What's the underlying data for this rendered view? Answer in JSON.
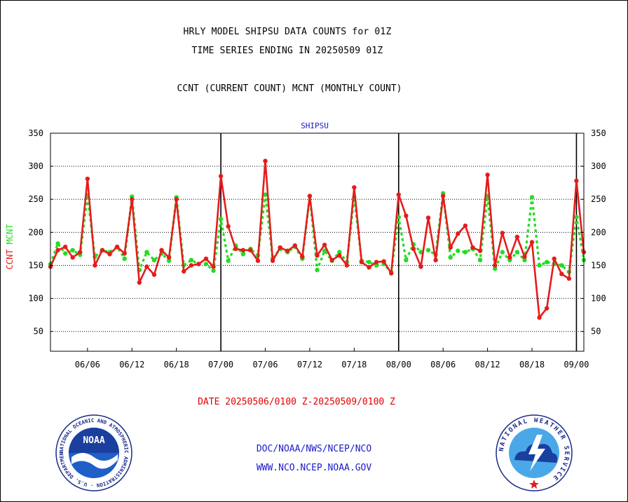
{
  "header": {
    "title_line1": "HRLY MODEL SHIPSU DATA COUNTS for 01Z",
    "title_line2": "TIME SERIES ENDING IN 20250509 01Z",
    "subtitle": "CCNT (CURRENT COUNT) MCNT (MONTHLY COUNT)"
  },
  "footer": {
    "date_range": "DATE 20250506/0100 Z-20250509/0100 Z",
    "org_path": "DOC/NOAA/NWS/NCEP/NCO",
    "website": "WWW.NCO.NCEP.NOAA.GOV"
  },
  "logos": {
    "noaa": "NOAA",
    "noaa_ring_text": "NATIONAL OCEANIC AND ATMOSPHERIC ADMINISTRATION · U.S. DEPARTMENT OF COMMERCE ·",
    "nws_ring_text": "NATIONAL WEATHER SERVICE"
  },
  "colors": {
    "ccnt": "#e51c1c",
    "mcnt": "#22dd22",
    "text": "#000000",
    "footer_text": "#1a1acc",
    "plot_title": "#1a1acc"
  },
  "chart_data": {
    "type": "line",
    "title": "SHIPSU",
    "ylabel_left": [
      "CCNT",
      "MCNT"
    ],
    "ylim": [
      20,
      350
    ],
    "yticks": [
      50,
      100,
      150,
      200,
      250,
      300,
      350
    ],
    "x_unit": "hours since 20250506/0100 Z",
    "xlim": [
      0,
      72
    ],
    "xticks": [
      {
        "x": 5,
        "label": "06/06"
      },
      {
        "x": 11,
        "label": "06/12"
      },
      {
        "x": 17,
        "label": "06/18"
      },
      {
        "x": 23,
        "label": "07/00"
      },
      {
        "x": 29,
        "label": "07/06"
      },
      {
        "x": 35,
        "label": "07/12"
      },
      {
        "x": 41,
        "label": "07/18"
      },
      {
        "x": 47,
        "label": "08/00"
      },
      {
        "x": 53,
        "label": "08/06"
      },
      {
        "x": 59,
        "label": "08/12"
      },
      {
        "x": 65,
        "label": "08/18"
      },
      {
        "x": 71,
        "label": "09/00"
      }
    ],
    "day_boundaries": [
      23,
      47,
      71
    ],
    "grid": "horizontal dotted",
    "series": [
      {
        "name": "CCNT",
        "style": "solid",
        "values": [
          148,
          173,
          178,
          162,
          170,
          281,
          150,
          173,
          167,
          178,
          168,
          250,
          124,
          148,
          136,
          173,
          162,
          250,
          141,
          150,
          152,
          160,
          148,
          285,
          209,
          175,
          173,
          173,
          157,
          308,
          157,
          177,
          172,
          180,
          163,
          255,
          165,
          181,
          158,
          165,
          150,
          268,
          155,
          147,
          155,
          156,
          138,
          257,
          225,
          175,
          148,
          222,
          158,
          255,
          177,
          198,
          210,
          177,
          172,
          287,
          150,
          199,
          162,
          193,
          163,
          185,
          71,
          85,
          160,
          137,
          130,
          278,
          170
        ],
        "markers": [
          0,
          1,
          2,
          3,
          4,
          5,
          6,
          7,
          8,
          9,
          10,
          11,
          12,
          13,
          14,
          15,
          16,
          17,
          18,
          19,
          20,
          21,
          22,
          23,
          24,
          25,
          26,
          27,
          28,
          29,
          30,
          31,
          32,
          33,
          34,
          35,
          36,
          37,
          38,
          39,
          40,
          41,
          42,
          43,
          44,
          45,
          46,
          47,
          48,
          49,
          50,
          51,
          52,
          53,
          54,
          55,
          56,
          57,
          58,
          59,
          60,
          61,
          62,
          63,
          64,
          65,
          66,
          67,
          68,
          69,
          70,
          71,
          72
        ]
      },
      {
        "name": "MCNT",
        "style": "dashed",
        "values": [
          152,
          183,
          168,
          173,
          166,
          256,
          163,
          173,
          170,
          178,
          160,
          254,
          143,
          170,
          158,
          168,
          157,
          253,
          150,
          158,
          152,
          152,
          142,
          220,
          157,
          180,
          167,
          175,
          165,
          257,
          160,
          175,
          170,
          178,
          160,
          255,
          143,
          172,
          157,
          170,
          155,
          253,
          157,
          155,
          150,
          152,
          140,
          223,
          158,
          182,
          170,
          173,
          166,
          259,
          162,
          172,
          170,
          175,
          158,
          255,
          145,
          170,
          158,
          170,
          158,
          253,
          150,
          155,
          152,
          150,
          140,
          223,
          158
        ]
      }
    ]
  }
}
